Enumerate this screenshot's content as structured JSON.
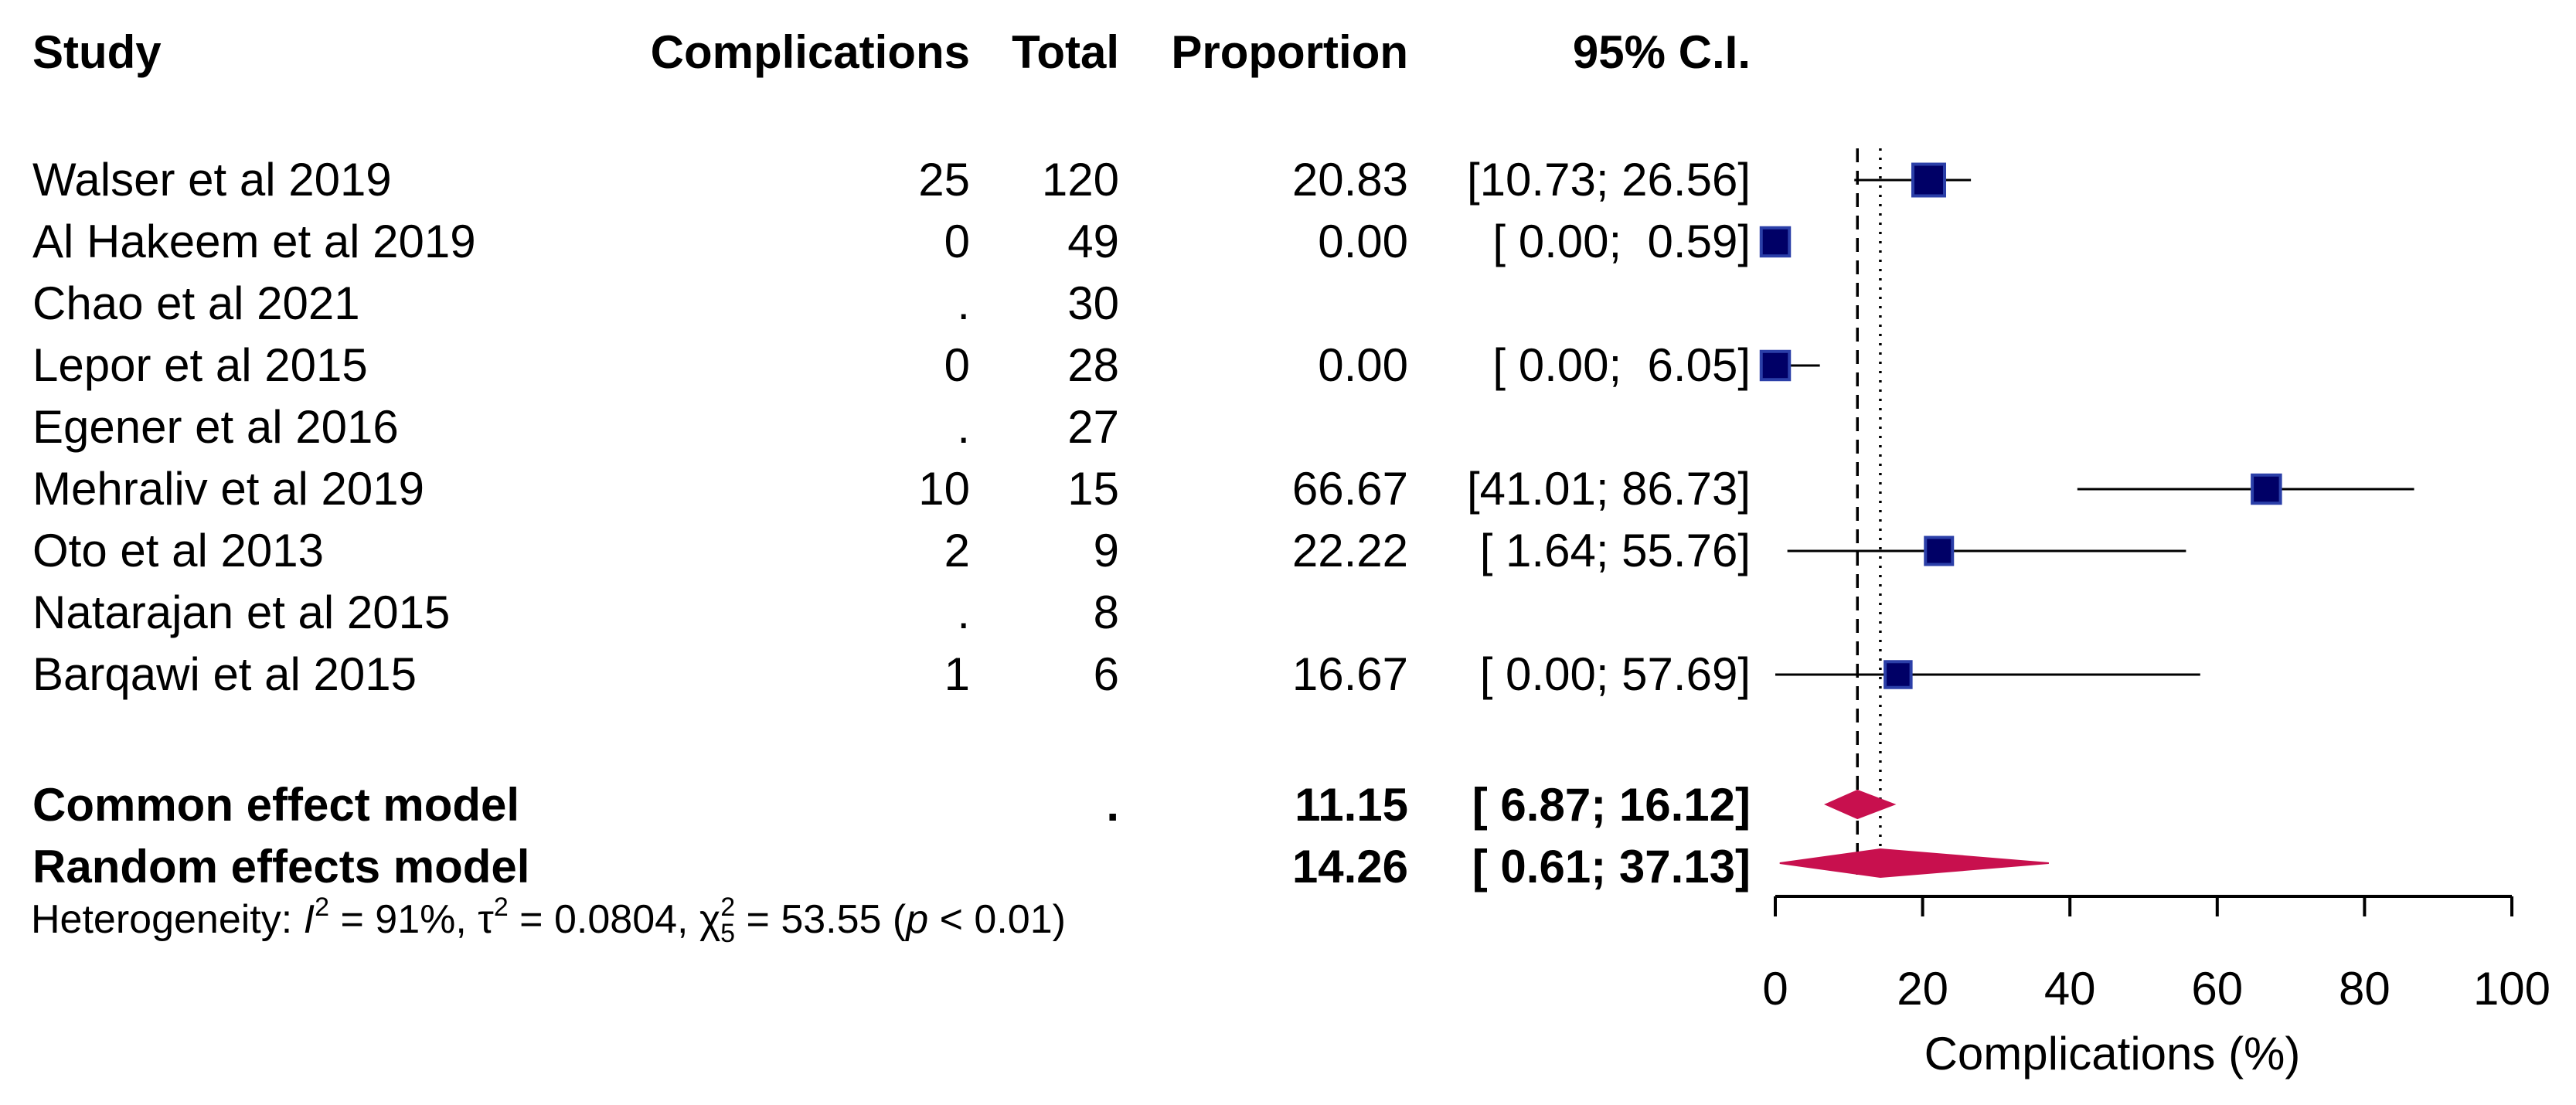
{
  "headers": {
    "study": "Study",
    "events": "Complications",
    "total": "Total",
    "proportion": "Proportion",
    "ci": "95% C.I."
  },
  "colors": {
    "study_square": "#000066",
    "study_square_border": "#2b3fa8",
    "diamond": "#c8104e",
    "line": "#000000"
  },
  "chart_data": {
    "type": "forest",
    "x_axis": {
      "label": "Complications (%)",
      "lim": [
        0,
        100
      ],
      "ticks": [
        0,
        20,
        40,
        60,
        80,
        100
      ],
      "tick_labels": [
        "0",
        "20",
        "40",
        "60",
        "80",
        "100"
      ]
    },
    "reference_lines": {
      "common_effect": 11.15,
      "random_effects": 14.26
    },
    "studies": [
      {
        "study": "Walser et al 2019",
        "events": "25",
        "total": "120",
        "proportion": "20.83",
        "ci": "[10.73; 26.56]",
        "est": 20.83,
        "lo": 10.73,
        "hi": 26.56,
        "weight": 0.9
      },
      {
        "study": "Al Hakeem et al 2019",
        "events": "0",
        "total": "49",
        "proportion": "0.00",
        "ci": "[ 0.00;  0.59]",
        "est": 0.0,
        "lo": 0.0,
        "hi": 0.59,
        "weight": 0.75
      },
      {
        "study": "Chao et al 2021",
        "events": ".",
        "total": "30",
        "proportion": "",
        "ci": "",
        "est": null,
        "lo": null,
        "hi": null,
        "weight": 0
      },
      {
        "study": "Lepor et al 2015",
        "events": "0",
        "total": "28",
        "proportion": "0.00",
        "ci": "[ 0.00;  6.05]",
        "est": 0.0,
        "lo": 0.0,
        "hi": 6.05,
        "weight": 0.75
      },
      {
        "study": "Egener et al 2016",
        "events": ".",
        "total": "27",
        "proportion": "",
        "ci": "",
        "est": null,
        "lo": null,
        "hi": null,
        "weight": 0
      },
      {
        "study": "Mehraliv et al 2019",
        "events": "10",
        "total": "15",
        "proportion": "66.67",
        "ci": "[41.01; 86.73]",
        "est": 66.67,
        "lo": 41.01,
        "hi": 86.73,
        "weight": 0.75
      },
      {
        "study": "Oto et al 2013",
        "events": "2",
        "total": "9",
        "proportion": "22.22",
        "ci": "[ 1.64; 55.76]",
        "est": 22.22,
        "lo": 1.64,
        "hi": 55.76,
        "weight": 0.7
      },
      {
        "study": "Natarajan et al 2015",
        "events": ".",
        "total": "8",
        "proportion": "",
        "ci": "",
        "est": null,
        "lo": null,
        "hi": null,
        "weight": 0
      },
      {
        "study": "Barqawi et al 2015",
        "events": "1",
        "total": "6",
        "proportion": "16.67",
        "ci": "[ 0.00; 57.69]",
        "est": 16.67,
        "lo": 0.0,
        "hi": 57.69,
        "weight": 0.65
      }
    ],
    "pooled": [
      {
        "label": "Common effect model",
        "total": ".",
        "proportion": "11.15",
        "ci": "[ 6.87; 16.12]",
        "est": 11.15,
        "lo": 6.87,
        "hi": 16.12
      },
      {
        "label": "Random effects model",
        "total": "",
        "proportion": "14.26",
        "ci": "[ 0.61; 37.13]",
        "est": 14.26,
        "lo": 0.61,
        "hi": 37.13
      }
    ],
    "heterogeneity": {
      "prefix": "Heterogeneity: ",
      "i2_symbol": "I",
      "i2_sup": "2",
      "i2_value": " = 91%, ",
      "tau_symbol": "τ",
      "tau_sup": "2",
      "tau_value": " = 0.0804, ",
      "chi_symbol": "χ",
      "chi_sup": "2",
      "chi_sub": "5",
      "chi_value": " = 53.55 (",
      "p_symbol": "p",
      "p_value": " < 0.01)"
    }
  }
}
